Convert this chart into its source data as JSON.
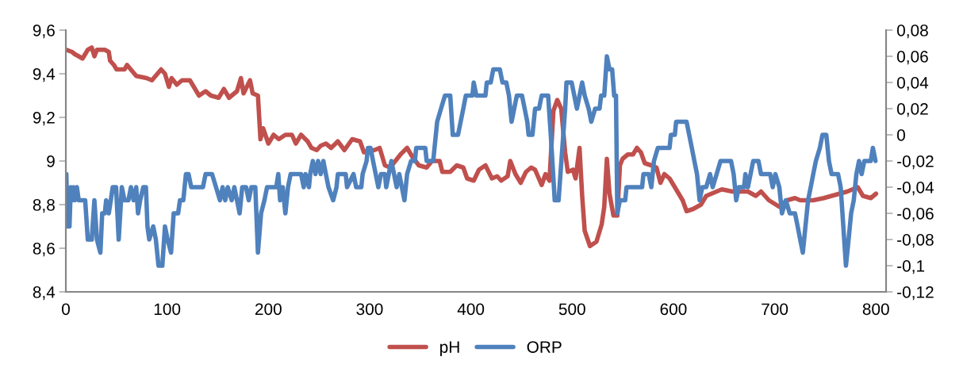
{
  "chart_data": {
    "type": "line",
    "legend": "bottom",
    "grid": false,
    "line_style": "solid",
    "marker": "none",
    "xlim": [
      0,
      810
    ],
    "xticks": [
      0,
      100,
      200,
      300,
      400,
      500,
      600,
      700,
      800
    ],
    "ylim": [
      8.4,
      9.6
    ],
    "yticks": [
      {
        "value": 8.4,
        "label": "8,4"
      },
      {
        "value": 8.6,
        "label": "8,6"
      },
      {
        "value": 8.8,
        "label": "8,8"
      },
      {
        "value": 9,
        "label": "9"
      },
      {
        "value": 9.2,
        "label": "9,2"
      },
      {
        "value": 9.4,
        "label": "9,4"
      },
      {
        "value": 9.6,
        "label": "9,6"
      }
    ],
    "y2lim": [
      -0.12,
      0.08
    ],
    "y2ticks": [
      {
        "value": -0.12,
        "label": "-0,12"
      },
      {
        "value": -0.1,
        "label": "-0,1"
      },
      {
        "value": -0.08,
        "label": "-0,08"
      },
      {
        "value": -0.06,
        "label": "-0,06"
      },
      {
        "value": -0.04,
        "label": "-0,04"
      },
      {
        "value": -0.02,
        "label": "-0,02"
      },
      {
        "value": 0,
        "label": "0"
      },
      {
        "value": 0.02,
        "label": "0,02"
      },
      {
        "value": 0.04,
        "label": "0,04"
      },
      {
        "value": 0.06,
        "label": "0,06"
      },
      {
        "value": 0.08,
        "label": "0,08"
      }
    ],
    "series": [
      {
        "name": "pH",
        "color": "#c0504d",
        "x": [
          0.5,
          6.2,
          8.8,
          12.7,
          16.5,
          21.7,
          25.6,
          28.2,
          30.7,
          38.5,
          42.4,
          43.7,
          47.5,
          50.1,
          57.9,
          60.5,
          69.5,
          79.8,
          85.0,
          94.1,
          97.9,
          101.8,
          104.4,
          109.6,
          114.7,
          122.5,
          125.1,
          131.5,
          138.0,
          143.2,
          150.9,
          156.1,
          161.2,
          169.0,
          172.9,
          175.5,
          181.9,
          184.5,
          189.7,
          192.2,
          194.8,
          200.0,
          205.2,
          210.3,
          216.8,
          223.3,
          227.1,
          232.3,
          238.8,
          242.6,
          247.8,
          251.7,
          256.8,
          262.0,
          268.6,
          275.1,
          282.8,
          290.5,
          294.4,
          304.7,
          309.9,
          315.1,
          320.2,
          325.4,
          330.5,
          337.0,
          342.1,
          348.6,
          356.3,
          361.5,
          369.2,
          371.8,
          379.6,
          386.0,
          392.5,
          396.3,
          402.8,
          408.0,
          414.4,
          420.8,
          426.0,
          429.9,
          436.3,
          438.9,
          444.0,
          449.2,
          454.4,
          459.5,
          463.4,
          469.9,
          473.7,
          477.6,
          481.5,
          485.3,
          489.2,
          493.1,
          495.7,
          500.8,
          503.4,
          507.3,
          509.9,
          512.4,
          517.6,
          524.0,
          529.2,
          531.7,
          534.3,
          536.9,
          540.8,
          544.6,
          547.2,
          549.8,
          555.0,
          560.1,
          564.0,
          567.9,
          571.7,
          578.2,
          583.3,
          587.2,
          591.1,
          596.2,
          601.4,
          609.1,
          613.0,
          619.5,
          627.2,
          632.4,
          637.5,
          647.8,
          658.2,
          673.6,
          681.4,
          686.5,
          694.3,
          704.6,
          712.3,
          720.1,
          725.2,
          738.1,
          748.5,
          756.2,
          763.9,
          771.7,
          782.0,
          787.2,
          794.9,
          800.1
        ],
        "values": [
          9.51,
          9.5,
          9.49,
          9.48,
          9.47,
          9.51,
          9.52,
          9.48,
          9.51,
          9.51,
          9.5,
          9.46,
          9.44,
          9.42,
          9.42,
          9.44,
          9.39,
          9.38,
          9.37,
          9.42,
          9.4,
          9.34,
          9.38,
          9.35,
          9.37,
          9.37,
          9.35,
          9.3,
          9.32,
          9.3,
          9.29,
          9.33,
          9.29,
          9.32,
          9.38,
          9.31,
          9.37,
          9.31,
          9.3,
          9.1,
          9.15,
          9.08,
          9.12,
          9.1,
          9.12,
          9.12,
          9.08,
          9.12,
          9.09,
          9.06,
          9.05,
          9.07,
          9.08,
          9.06,
          9.09,
          9.05,
          9.1,
          9.09,
          9.04,
          9.05,
          9.06,
          8.98,
          8.97,
          9.0,
          9.03,
          9.06,
          9.02,
          8.98,
          8.97,
          9.0,
          9.0,
          8.95,
          8.95,
          8.98,
          8.97,
          8.92,
          8.91,
          8.96,
          8.98,
          8.92,
          8.93,
          8.91,
          8.93,
          9.0,
          8.94,
          8.9,
          8.95,
          8.97,
          8.96,
          8.89,
          8.94,
          8.91,
          9.23,
          9.28,
          9.24,
          9.04,
          8.95,
          8.96,
          8.92,
          9.06,
          8.84,
          8.68,
          8.61,
          8.63,
          8.71,
          8.79,
          9.01,
          8.85,
          8.75,
          8.75,
          8.98,
          9.01,
          9.03,
          9.03,
          9.06,
          9.04,
          8.99,
          8.98,
          8.97,
          8.9,
          8.94,
          8.92,
          8.88,
          8.82,
          8.77,
          8.78,
          8.8,
          8.84,
          8.85,
          8.87,
          8.86,
          8.86,
          8.84,
          8.86,
          8.82,
          8.79,
          8.82,
          8.83,
          8.82,
          8.82,
          8.83,
          8.84,
          8.85,
          8.86,
          8.88,
          8.84,
          8.83,
          8.85
        ]
      },
      {
        "name": "ORP",
        "color": "#4f81bd",
        "axis": "y2",
        "x": [
          0.5,
          1.6,
          3.6,
          4.9,
          6.2,
          7.5,
          8.8,
          10.9,
          12.7,
          19.1,
          21.7,
          25.6,
          28.2,
          30.7,
          34.1,
          35.9,
          38.5,
          39.8,
          42.4,
          44.4,
          46.3,
          49.6,
          52.2,
          55.3,
          57.9,
          61.8,
          64.3,
          66.9,
          69.5,
          71.3,
          73.4,
          76.5,
          79.1,
          80.6,
          82.4,
          86.3,
          88.9,
          91.5,
          95.3,
          97.9,
          100.5,
          103.9,
          106.5,
          110.9,
          112.7,
          116.0,
          118.6,
          121.2,
          123.8,
          135.4,
          138.0,
          144.4,
          148.3,
          152.2,
          154.8,
          157.4,
          159.9,
          163.8,
          166.4,
          171.6,
          174.2,
          178.0,
          180.6,
          183.2,
          187.1,
          189.7,
          192.8,
          196.1,
          198.7,
          207.8,
          209.8,
          211.6,
          214.2,
          216.8,
          219.4,
          222.0,
          232.3,
          234.9,
          236.7,
          240.1,
          241.3,
          243.9,
          246.5,
          249.1,
          251.7,
          254.3,
          256.8,
          259.4,
          264.0,
          267.3,
          268.6,
          276.4,
          277.7,
          284.1,
          286.7,
          291.8,
          293.1,
          297.0,
          298.3,
          300.9,
          303.4,
          306.0,
          308.6,
          311.2,
          315.1,
          316.4,
          318.9,
          321.5,
          324.1,
          326.7,
          329.3,
          331.8,
          334.4,
          337.0,
          340.9,
          344.7,
          346.0,
          355.0,
          356.3,
          362.8,
          365.4,
          366.7,
          370.5,
          374.4,
          379.6,
          382.1,
          387.3,
          389.9,
          392.5,
          395.0,
          401.5,
          402.8,
          405.4,
          414.4,
          415.7,
          419.6,
          422.1,
          428.6,
          431.2,
          435.0,
          437.6,
          440.2,
          442.8,
          445.4,
          450.5,
          453.1,
          455.7,
          457.0,
          460.8,
          463.4,
          467.3,
          469.9,
          476.3,
          478.9,
          482.8,
          486.6,
          493.1,
          494.4,
          499.5,
          502.1,
          504.7,
          507.3,
          509.9,
          512.4,
          516.3,
          518.9,
          522.7,
          524.0,
          527.1,
          528.6,
          531.7,
          534.3,
          536.9,
          539.5,
          541.5,
          543.3,
          544.6,
          547.2,
          552.4,
          553.7,
          569.1,
          570.4,
          575.6,
          578.2,
          580.8,
          584.6,
          596.2,
          597.5,
          601.4,
          602.7,
          613.0,
          615.6,
          618.2,
          620.7,
          623.3,
          625.9,
          628.5,
          632.4,
          636.2,
          638.8,
          642.7,
          646.5,
          656.9,
          659.5,
          662.0,
          664.6,
          669.8,
          671.1,
          673.6,
          676.2,
          678.8,
          684.0,
          686.5,
          695.6,
          698.1,
          700.7,
          704.6,
          707.2,
          711.0,
          714.9,
          720.1,
          722.7,
          725.2,
          727.8,
          730.4,
          733.0,
          735.6,
          738.1,
          740.7,
          744.6,
          747.2,
          751.0,
          753.6,
          756.2,
          762.6,
          765.2,
          767.8,
          770.4,
          773.0,
          775.5,
          778.1,
          780.7,
          783.3,
          785.9,
          788.5,
          792.3,
          794.9,
          797.0,
          799.6
        ],
        "values": [
          -0.03,
          -0.07,
          -0.07,
          -0.04,
          -0.05,
          -0.04,
          -0.05,
          -0.04,
          -0.05,
          -0.05,
          -0.08,
          -0.08,
          -0.05,
          -0.08,
          -0.09,
          -0.06,
          -0.06,
          -0.05,
          -0.06,
          -0.05,
          -0.04,
          -0.04,
          -0.08,
          -0.04,
          -0.05,
          -0.05,
          -0.04,
          -0.05,
          -0.04,
          -0.06,
          -0.05,
          -0.04,
          -0.04,
          -0.07,
          -0.08,
          -0.07,
          -0.08,
          -0.1,
          -0.1,
          -0.07,
          -0.08,
          -0.09,
          -0.06,
          -0.06,
          -0.05,
          -0.05,
          -0.03,
          -0.03,
          -0.04,
          -0.04,
          -0.03,
          -0.03,
          -0.04,
          -0.05,
          -0.04,
          -0.05,
          -0.04,
          -0.05,
          -0.04,
          -0.06,
          -0.04,
          -0.04,
          -0.05,
          -0.04,
          -0.04,
          -0.09,
          -0.06,
          -0.05,
          -0.04,
          -0.04,
          -0.03,
          -0.05,
          -0.04,
          -0.06,
          -0.04,
          -0.03,
          -0.03,
          -0.04,
          -0.03,
          -0.04,
          -0.03,
          -0.02,
          -0.03,
          -0.02,
          -0.03,
          -0.02,
          -0.03,
          -0.04,
          -0.05,
          -0.04,
          -0.03,
          -0.03,
          -0.04,
          -0.03,
          -0.04,
          -0.04,
          -0.03,
          -0.02,
          -0.01,
          -0.01,
          -0.02,
          -0.03,
          -0.04,
          -0.03,
          -0.03,
          -0.04,
          -0.03,
          -0.02,
          -0.03,
          -0.04,
          -0.03,
          -0.04,
          -0.05,
          -0.03,
          -0.02,
          -0.02,
          -0.01,
          -0.01,
          -0.02,
          -0.02,
          0,
          0.01,
          0.02,
          0.03,
          0.03,
          0,
          0,
          0.01,
          0.02,
          0.03,
          0.03,
          0.04,
          0.03,
          0.03,
          0.04,
          0.04,
          0.05,
          0.05,
          0.04,
          0.04,
          0.03,
          0.01,
          0.02,
          0.03,
          0.03,
          0.02,
          0.01,
          0,
          0,
          0.02,
          0.02,
          0.03,
          0.03,
          0,
          -0.05,
          -0.05,
          0.02,
          0.04,
          0.04,
          0.03,
          0.02,
          0.03,
          0.04,
          0.03,
          0.02,
          0.01,
          0.02,
          0.02,
          0.02,
          0.03,
          0.03,
          0.06,
          0.05,
          0.05,
          0.03,
          0.03,
          -0.06,
          -0.05,
          -0.05,
          -0.04,
          -0.04,
          -0.03,
          -0.03,
          -0.04,
          -0.02,
          -0.01,
          -0.01,
          0,
          0,
          0.01,
          0.01,
          0,
          -0.01,
          -0.02,
          -0.03,
          -0.05,
          -0.04,
          -0.04,
          -0.03,
          -0.04,
          -0.03,
          -0.02,
          -0.02,
          -0.03,
          -0.05,
          -0.04,
          -0.04,
          -0.03,
          -0.04,
          -0.03,
          -0.02,
          -0.02,
          -0.03,
          -0.03,
          -0.04,
          -0.03,
          -0.04,
          -0.06,
          -0.05,
          -0.06,
          -0.06,
          -0.07,
          -0.08,
          -0.09,
          -0.07,
          -0.05,
          -0.04,
          -0.03,
          -0.02,
          -0.01,
          0,
          0,
          -0.02,
          -0.03,
          -0.03,
          -0.04,
          -0.07,
          -0.1,
          -0.08,
          -0.06,
          -0.05,
          -0.03,
          -0.02,
          -0.03,
          -0.02,
          -0.02,
          -0.02,
          -0.01,
          -0.02
        ]
      }
    ]
  }
}
